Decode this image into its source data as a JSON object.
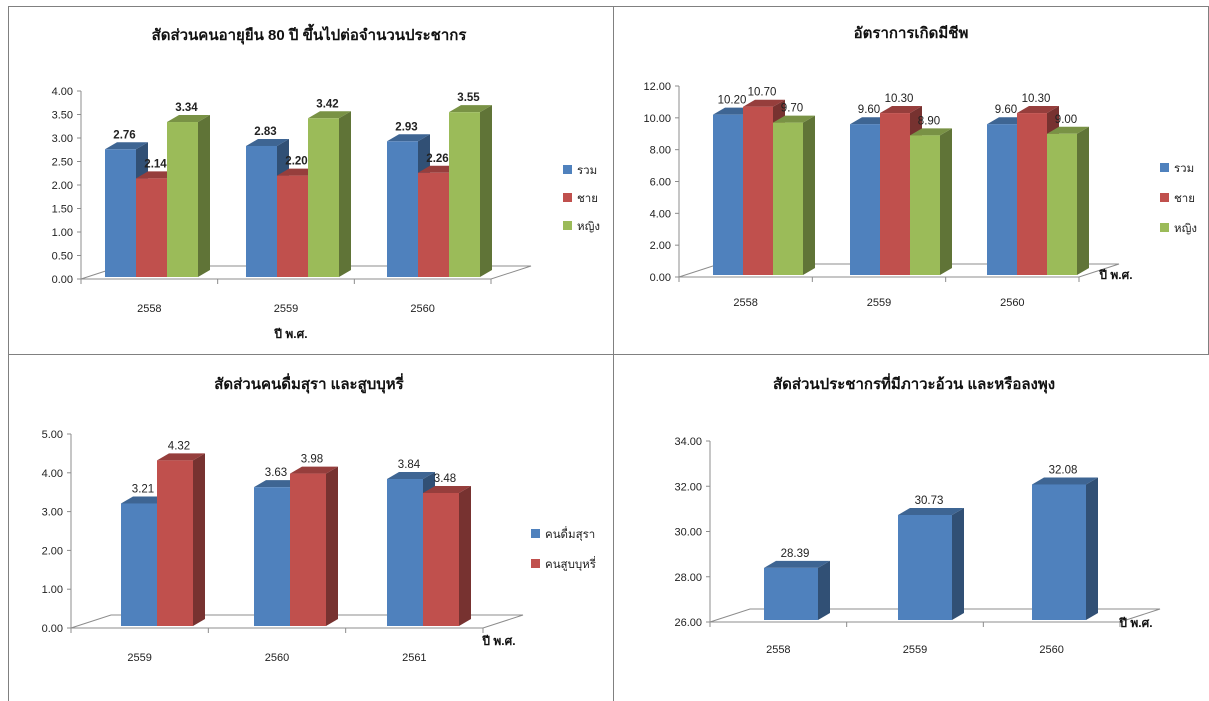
{
  "colors": {
    "blue": "#4F81BD",
    "red": "#C0504D",
    "green": "#9BBB59"
  },
  "chart_data": [
    {
      "type": "bar",
      "title": "สัดส่วนคนอายุยืน 80 ปี ขึ้นไปต่อจำนวนประชากร",
      "xlabel": "ปี พ.ศ.",
      "ylabel": "",
      "categories": [
        "2558",
        "2559",
        "2560"
      ],
      "series": [
        {
          "name": "รวม",
          "values": [
            2.76,
            2.83,
            2.93
          ],
          "labels": [
            "2.76",
            "2.83",
            "2.93"
          ],
          "color": "#4F81BD"
        },
        {
          "name": "ชาย",
          "values": [
            2.14,
            2.2,
            2.26
          ],
          "labels": [
            "2.14",
            "2.20",
            "2.26"
          ],
          "color": "#C0504D"
        },
        {
          "name": "หญิง",
          "values": [
            3.34,
            3.42,
            3.55
          ],
          "labels": [
            "3.34",
            "3.42",
            "3.55"
          ],
          "color": "#9BBB59"
        }
      ],
      "yticks": [
        "0.00",
        "0.50",
        "1.00",
        "1.50",
        "2.00",
        "2.50",
        "3.00",
        "3.50",
        "4.00"
      ],
      "ylim": [
        0,
        4
      ],
      "legend": "right"
    },
    {
      "type": "bar",
      "title": "อัตราการเกิดมีชีพ",
      "xlabel": "ปี พ.ศ.",
      "ylabel": "",
      "categories": [
        "2558",
        "2559",
        "2560"
      ],
      "series": [
        {
          "name": "รวม",
          "values": [
            10.2,
            9.6,
            9.6
          ],
          "labels": [
            "10.20",
            "9.60",
            "9.60"
          ],
          "color": "#4F81BD"
        },
        {
          "name": "ชาย",
          "values": [
            10.7,
            10.3,
            10.3
          ],
          "labels": [
            "10.70",
            "10.30",
            "10.30"
          ],
          "color": "#C0504D"
        },
        {
          "name": "หญิง",
          "values": [
            9.7,
            8.9,
            9.0
          ],
          "labels": [
            "9.70",
            "8.90",
            "9.00"
          ],
          "color": "#9BBB59"
        }
      ],
      "yticks": [
        "0.00",
        "2.00",
        "4.00",
        "6.00",
        "8.00",
        "10.00",
        "12.00"
      ],
      "ylim": [
        0,
        12
      ],
      "legend": "right"
    },
    {
      "type": "bar",
      "title": "สัดส่วนคนดื่มสุรา และสูบบุหรี่",
      "xlabel": "ปี พ.ศ.",
      "ylabel": "",
      "categories": [
        "2559",
        "2560",
        "2561"
      ],
      "series": [
        {
          "name": "คนดื่มสุรา",
          "values": [
            3.21,
            3.63,
            3.84
          ],
          "labels": [
            "3.21",
            "3.63",
            "3.84"
          ],
          "color": "#4F81BD"
        },
        {
          "name": "คนสูบบุหรี่",
          "values": [
            4.32,
            3.98,
            3.48
          ],
          "labels": [
            "4.32",
            "3.98",
            "3.48"
          ],
          "color": "#C0504D"
        }
      ],
      "yticks": [
        "0.00",
        "1.00",
        "2.00",
        "3.00",
        "4.00",
        "5.00"
      ],
      "ylim": [
        0,
        5
      ],
      "legend": "right"
    },
    {
      "type": "bar",
      "title": "สัดส่วนประชากรที่มีภาวะอ้วน และหรือลงพุง",
      "xlabel": "ปี พ.ศ.",
      "ylabel": "",
      "categories": [
        "2558",
        "2559",
        "2560"
      ],
      "series": [
        {
          "values": [
            28.39,
            30.73,
            32.08
          ],
          "labels": [
            "28.39",
            "30.73",
            "32.08"
          ],
          "color": "#4F81BD"
        }
      ],
      "yticks": [
        "26.00",
        "28.00",
        "30.00",
        "32.00",
        "34.00"
      ],
      "ylim": [
        26,
        34
      ],
      "legend": "none"
    }
  ]
}
